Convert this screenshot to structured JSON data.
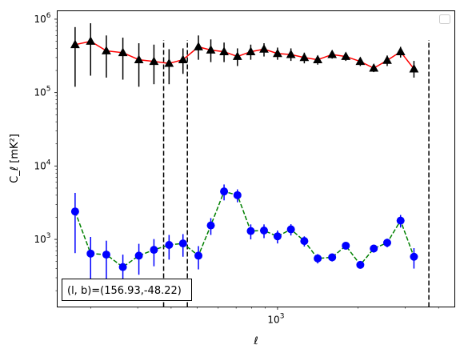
{
  "chart_data": {
    "type": "line",
    "xscale": "log",
    "yscale": "log",
    "xlim": [
      150,
      4600
    ],
    "ylim": [
      120,
      1300000
    ],
    "xlabel": "ℓ",
    "ylabel": "C_ℓ [mK²]",
    "x_tick_labels": [
      {
        "value": 1000,
        "base": "10",
        "exp": "3"
      }
    ],
    "y_tick_labels": [
      {
        "value": 1000,
        "base": "10",
        "exp": "3"
      },
      {
        "value": 10000,
        "base": "10",
        "exp": "4"
      },
      {
        "value": 100000,
        "base": "10",
        "exp": "5"
      },
      {
        "value": 1000000,
        "base": "10",
        "exp": "6"
      }
    ],
    "legend": {
      "placement": "upper-right",
      "entries": []
    },
    "vertical_lines": [
      {
        "x": 375,
        "y_top": 520000,
        "style": "dashed",
        "color": "#000000"
      },
      {
        "x": 460,
        "y_top": 520000,
        "style": "dashed",
        "color": "#000000"
      },
      {
        "x": 3680,
        "y_top": 520000,
        "style": "dashed",
        "color": "#000000"
      }
    ],
    "annotation": "(l, b)=(156.93,-48.22)",
    "series": [
      {
        "line_color": "#ff0000",
        "line_style": "solid",
        "marker": "triangle",
        "marker_color": "#000000",
        "errorbar_color": "#000000",
        "points": [
          {
            "x": 175,
            "y": 450000,
            "lo": 120000,
            "hi": 780000
          },
          {
            "x": 200,
            "y": 500000,
            "lo": 170000,
            "hi": 880000
          },
          {
            "x": 229,
            "y": 370000,
            "lo": 160000,
            "hi": 600000
          },
          {
            "x": 264,
            "y": 350000,
            "lo": 150000,
            "hi": 560000
          },
          {
            "x": 303,
            "y": 280000,
            "lo": 120000,
            "hi": 470000
          },
          {
            "x": 345,
            "y": 265000,
            "lo": 130000,
            "hi": 450000
          },
          {
            "x": 393,
            "y": 250000,
            "lo": 130000,
            "hi": 390000
          },
          {
            "x": 443,
            "y": 280000,
            "lo": 180000,
            "hi": 400000
          },
          {
            "x": 506,
            "y": 420000,
            "lo": 280000,
            "hi": 600000
          },
          {
            "x": 563,
            "y": 380000,
            "lo": 260000,
            "hi": 530000
          },
          {
            "x": 631,
            "y": 360000,
            "lo": 260000,
            "hi": 480000
          },
          {
            "x": 708,
            "y": 310000,
            "lo": 230000,
            "hi": 400000
          },
          {
            "x": 794,
            "y": 360000,
            "lo": 280000,
            "hi": 450000
          },
          {
            "x": 890,
            "y": 390000,
            "lo": 310000,
            "hi": 470000
          },
          {
            "x": 1000,
            "y": 340000,
            "lo": 280000,
            "hi": 410000
          },
          {
            "x": 1122,
            "y": 330000,
            "lo": 270000,
            "hi": 400000
          },
          {
            "x": 1259,
            "y": 300000,
            "lo": 250000,
            "hi": 350000
          },
          {
            "x": 1413,
            "y": 280000,
            "lo": 240000,
            "hi": 320000
          },
          {
            "x": 1600,
            "y": 330000,
            "lo": 290000,
            "hi": 370000
          },
          {
            "x": 1800,
            "y": 310000,
            "lo": 270000,
            "hi": 350000
          },
          {
            "x": 2039,
            "y": 265000,
            "lo": 230000,
            "hi": 300000
          },
          {
            "x": 2290,
            "y": 215000,
            "lo": 190000,
            "hi": 245000
          },
          {
            "x": 2570,
            "y": 275000,
            "lo": 230000,
            "hi": 320000
          },
          {
            "x": 2884,
            "y": 360000,
            "lo": 300000,
            "hi": 420000
          },
          {
            "x": 3236,
            "y": 210000,
            "lo": 160000,
            "hi": 270000
          }
        ]
      },
      {
        "line_color": "#008000",
        "line_style": "dashed",
        "marker": "circle",
        "marker_color": "#0000ff",
        "errorbar_color": "#0000ff",
        "points": [
          {
            "x": 175,
            "y": 2400,
            "lo": 650,
            "hi": 4300
          },
          {
            "x": 200,
            "y": 640,
            "lo": 200,
            "hi": 1080
          },
          {
            "x": 229,
            "y": 620,
            "lo": 280,
            "hi": 960
          },
          {
            "x": 264,
            "y": 420,
            "lo": 220,
            "hi": 620
          },
          {
            "x": 303,
            "y": 600,
            "lo": 330,
            "hi": 870
          },
          {
            "x": 345,
            "y": 720,
            "lo": 430,
            "hi": 1010
          },
          {
            "x": 393,
            "y": 840,
            "lo": 530,
            "hi": 1150
          },
          {
            "x": 443,
            "y": 880,
            "lo": 580,
            "hi": 1180
          },
          {
            "x": 506,
            "y": 600,
            "lo": 390,
            "hi": 810
          },
          {
            "x": 563,
            "y": 1550,
            "lo": 1150,
            "hi": 1950
          },
          {
            "x": 631,
            "y": 4500,
            "lo": 3400,
            "hi": 5600
          },
          {
            "x": 708,
            "y": 4000,
            "lo": 3200,
            "hi": 4800
          },
          {
            "x": 794,
            "y": 1300,
            "lo": 1000,
            "hi": 1600
          },
          {
            "x": 890,
            "y": 1320,
            "lo": 1040,
            "hi": 1600
          },
          {
            "x": 1000,
            "y": 1100,
            "lo": 880,
            "hi": 1320
          },
          {
            "x": 1122,
            "y": 1370,
            "lo": 1130,
            "hi": 1610
          },
          {
            "x": 1259,
            "y": 950,
            "lo": 800,
            "hi": 1100
          },
          {
            "x": 1413,
            "y": 550,
            "lo": 470,
            "hi": 630
          },
          {
            "x": 1600,
            "y": 570,
            "lo": 500,
            "hi": 640
          },
          {
            "x": 1800,
            "y": 820,
            "lo": 730,
            "hi": 910
          },
          {
            "x": 2039,
            "y": 450,
            "lo": 400,
            "hi": 500
          },
          {
            "x": 2290,
            "y": 750,
            "lo": 660,
            "hi": 840
          },
          {
            "x": 2570,
            "y": 900,
            "lo": 780,
            "hi": 1020
          },
          {
            "x": 2884,
            "y": 1800,
            "lo": 1450,
            "hi": 2150
          },
          {
            "x": 3236,
            "y": 580,
            "lo": 400,
            "hi": 760
          }
        ]
      }
    ]
  }
}
